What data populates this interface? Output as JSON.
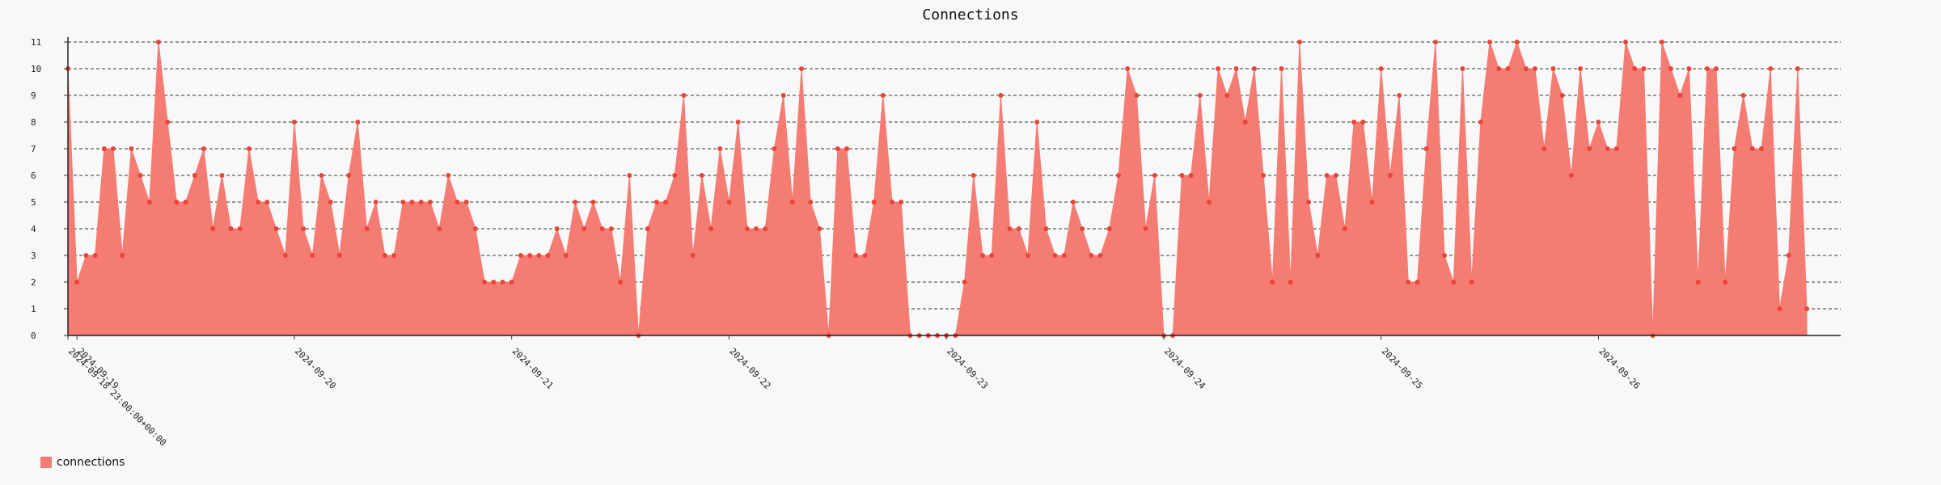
{
  "chart_data": {
    "type": "area",
    "title": "Connections",
    "xlabel": "",
    "ylabel": "",
    "ylim": [
      0,
      11
    ],
    "yticks": [
      0,
      1,
      2,
      3,
      4,
      5,
      6,
      7,
      8,
      9,
      10,
      11
    ],
    "grid": true,
    "legend_position": "bottom-left",
    "start_label": "2024-09-18 23:00:00+00:00",
    "date_ticks": [
      "2024-09-19",
      "2024-09-20",
      "2024-09-21",
      "2024-09-22",
      "2024-09-23",
      "2024-09-24",
      "2024-09-25",
      "2024-09-26"
    ],
    "series": [
      {
        "name": "connections",
        "color": "#f47c72",
        "values": [
          10,
          2,
          3,
          3,
          7,
          7,
          3,
          7,
          6,
          5,
          11,
          8,
          5,
          5,
          6,
          7,
          4,
          6,
          4,
          4,
          7,
          5,
          5,
          4,
          3,
          8,
          4,
          3,
          6,
          5,
          3,
          6,
          8,
          4,
          5,
          3,
          3,
          5,
          5,
          5,
          5,
          4,
          6,
          5,
          5,
          4,
          2,
          2,
          2,
          2,
          3,
          3,
          3,
          3,
          4,
          3,
          5,
          4,
          5,
          4,
          4,
          2,
          6,
          0,
          4,
          5,
          5,
          6,
          9,
          3,
          6,
          4,
          7,
          5,
          8,
          4,
          4,
          4,
          7,
          9,
          5,
          10,
          5,
          4,
          0,
          7,
          7,
          3,
          3,
          5,
          9,
          5,
          5,
          0,
          0,
          0,
          0,
          0,
          0,
          2,
          6,
          3,
          3,
          9,
          4,
          4,
          3,
          8,
          4,
          3,
          3,
          5,
          4,
          3,
          3,
          4,
          6,
          10,
          9,
          4,
          6,
          0,
          0,
          6,
          6,
          9,
          5,
          10,
          9,
          10,
          8,
          10,
          6,
          2,
          10,
          2,
          11,
          5,
          3,
          6,
          6,
          4,
          8,
          8,
          5,
          10,
          6,
          9,
          2,
          2,
          7,
          11,
          3,
          2,
          10,
          2,
          8,
          11,
          10,
          10,
          11,
          10,
          10,
          7,
          10,
          9,
          6,
          10,
          7,
          8,
          7,
          7,
          11,
          10,
          10,
          0,
          11,
          10,
          9,
          10,
          2,
          10,
          10,
          2,
          7,
          9,
          7,
          7,
          10,
          1,
          3,
          10,
          1
        ]
      }
    ]
  }
}
